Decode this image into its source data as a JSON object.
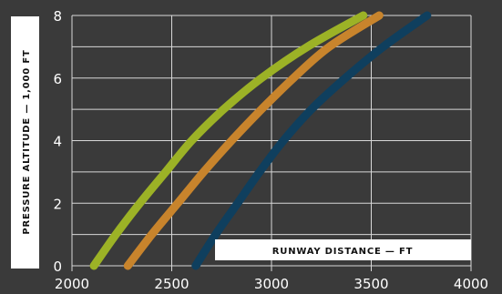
{
  "chart_data": {
    "type": "line",
    "title": "",
    "xlabel": "RUNWAY DISTANCE — FT",
    "ylabel": "PRESSURE ALTITUDE — 1,000 FT",
    "xlim": [
      2000,
      4000
    ],
    "ylim": [
      0,
      8
    ],
    "xticks": [
      2000,
      2500,
      3000,
      3500,
      4000
    ],
    "yticks": [
      0,
      2,
      4,
      6,
      8
    ],
    "grid": true,
    "legend": "none",
    "colors": {
      "background": "#3a3a3a",
      "grid": "#d8d8d8",
      "text": "#ffffff",
      "label_box": "#ffffff",
      "label_text": "#111111"
    },
    "series": [
      {
        "color": "#9cb226",
        "points": [
          [
            2110,
            0
          ],
          [
            2220,
            1
          ],
          [
            2340,
            2
          ],
          [
            2470,
            3
          ],
          [
            2600,
            4
          ],
          [
            2760,
            5
          ],
          [
            2950,
            6
          ],
          [
            3180,
            7
          ],
          [
            3460,
            8
          ]
        ]
      },
      {
        "color": "#c8842c",
        "points": [
          [
            2280,
            0
          ],
          [
            2400,
            1
          ],
          [
            2530,
            2
          ],
          [
            2660,
            3
          ],
          [
            2800,
            4
          ],
          [
            2950,
            5
          ],
          [
            3110,
            6
          ],
          [
            3290,
            7
          ],
          [
            3540,
            8
          ]
        ]
      },
      {
        "color": "#0f3f5e",
        "points": [
          [
            2620,
            0
          ],
          [
            2720,
            1
          ],
          [
            2830,
            2
          ],
          [
            2940,
            3
          ],
          [
            3060,
            4
          ],
          [
            3200,
            5
          ],
          [
            3370,
            6
          ],
          [
            3560,
            7
          ],
          [
            3780,
            8
          ]
        ]
      }
    ]
  }
}
